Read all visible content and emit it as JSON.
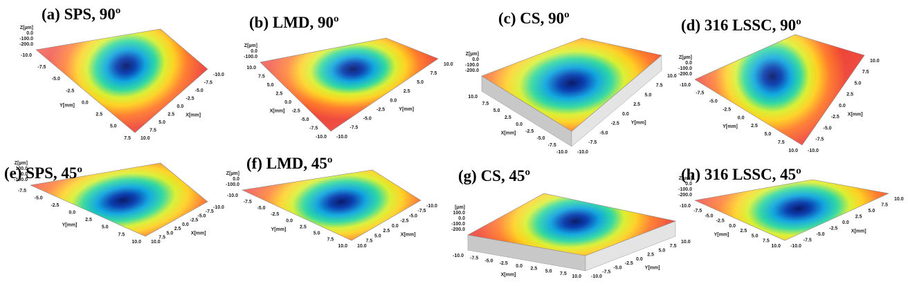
{
  "panels": [
    {
      "title": "(a) SPS, 90º",
      "z_label": "Z[µm]",
      "z_ticks": [
        "0.0",
        "-100.0",
        "-200.0"
      ],
      "y_label": "Y[mm]",
      "y_ticks": [
        "-10.0",
        "-7.5",
        "-5.0",
        "-2.5",
        "0.0",
        "2.5",
        "5.0",
        "7.5"
      ],
      "x_label": "X[mm]",
      "x_ticks": [
        "10.0",
        "7.5",
        "5.0",
        "2.5",
        "0.0",
        "-2.5",
        "-5.0",
        "-7.5",
        "-10.0"
      ]
    },
    {
      "title": "(b) LMD, 90º",
      "z_label": "Z[µm]",
      "z_ticks": [
        "0.0",
        "-100.0"
      ],
      "y_label": "X[mm]",
      "y_ticks": [
        "10.0",
        "7.5",
        "5.0",
        "2.5",
        "0.0",
        "-2.5",
        "-5.0",
        "-7.5",
        "-10.0"
      ],
      "x_label": "Y[mm]",
      "x_ticks": [
        "-10.0",
        "-7.5",
        "-5.0",
        "-2.5",
        "0.0",
        "2.5",
        "5.0",
        "7.5",
        "10.0"
      ]
    },
    {
      "title": "(c) CS, 90º",
      "z_label": "Z[µm]",
      "z_ticks": [
        "0.0",
        "-100.0",
        "-200.0"
      ],
      "y_label": "X[mm]",
      "y_ticks": [
        "10.0",
        "7.5",
        "5.0",
        "2.5",
        "0.0",
        "-2.5",
        "-5.0",
        "-7.5",
        "-10.0"
      ],
      "x_label": "Y[mm]",
      "x_ticks": [
        "-10.0",
        "-7.5",
        "-5.0",
        "-2.5",
        "0.0",
        "2.5",
        "5.0",
        "7.5",
        "10.0"
      ]
    },
    {
      "title": "(d) 316 LSSC, 90º",
      "z_label": "Z[µm]",
      "z_ticks": [
        "0.0",
        "-100.0",
        "-200.0"
      ],
      "y_label": "Y[mm]",
      "y_ticks": [
        "-10.0",
        "-7.5",
        "-5.0",
        "-2.5",
        "0.0",
        "2.5",
        "5.0",
        "7.5",
        "10.0"
      ],
      "x_label": "X[mm]",
      "x_ticks": [
        "-10.0",
        "-7.5",
        "-5.0",
        "-2.5",
        "0.0",
        "2.5",
        "5.0",
        "7.5",
        "10.0"
      ]
    },
    {
      "title": "(e) SPS, 45º",
      "z_label": "Z[µm]",
      "z_ticks": [
        "100.0",
        "0.0",
        "-100.0"
      ],
      "y_label": "Y[mm]",
      "y_ticks": [
        "-7.5",
        "-5.0",
        "-2.5",
        "0.0",
        "2.5",
        "5.0",
        "7.5",
        "10.0"
      ],
      "x_label": "X[mm]",
      "x_ticks": [
        "10.0",
        "7.5",
        "5.0",
        "2.5",
        "0.0",
        "-2.5",
        "-5.0",
        "-7.5",
        "-10.0"
      ]
    },
    {
      "title": "(f) LMD, 45º",
      "z_label": "Z[µm]",
      "z_ticks": [
        "0.0",
        "-100.0"
      ],
      "y_label": "Y[mm]",
      "y_ticks": [
        "-10.0",
        "-7.5",
        "-5.0",
        "-2.5",
        "0.0",
        "2.5",
        "5.0",
        "7.5",
        "10.0"
      ],
      "x_label": "X[mm]",
      "x_ticks": [
        "10.0",
        "7.5",
        "5.0",
        "2.5",
        "0.0",
        "-2.5",
        "-5.0",
        "-7.5",
        "-10.0"
      ]
    },
    {
      "title": "(g) CS, 45º",
      "z_label": "[µm]",
      "z_ticks": [
        "100.0",
        "0.0",
        "-100.0",
        "-200.0"
      ],
      "y_label": "X[mm]",
      "y_ticks": [
        "-10.0",
        "-7.5",
        "-5.0",
        "-2.5",
        "0.0",
        "2.5",
        "5.0",
        "7.5",
        "10.0"
      ],
      "x_label": "Y[mm]",
      "x_ticks": [
        "-10.0",
        "-7.5",
        "-5.0",
        "-2.5",
        "0.0",
        "2.5",
        "5.0",
        "7.5",
        "10.0"
      ]
    },
    {
      "title": "(h) 316 LSSC, 45º",
      "z_label": "Z[µm]",
      "z_ticks": [
        "0.0",
        "-100.0",
        "-200.0"
      ],
      "y_label": "Y[mm]",
      "y_ticks": [
        "-10.0",
        "-7.5",
        "-5.0",
        "-2.5",
        "0.0",
        "2.5",
        "5.0",
        "7.5",
        "10.0"
      ],
      "x_label": "X[mm]",
      "x_ticks": [
        "-10.0",
        "-7.5",
        "-5.0",
        "-2.5",
        "0.0",
        "2.5",
        "5.0",
        "7.5",
        "10.0"
      ]
    }
  ]
}
